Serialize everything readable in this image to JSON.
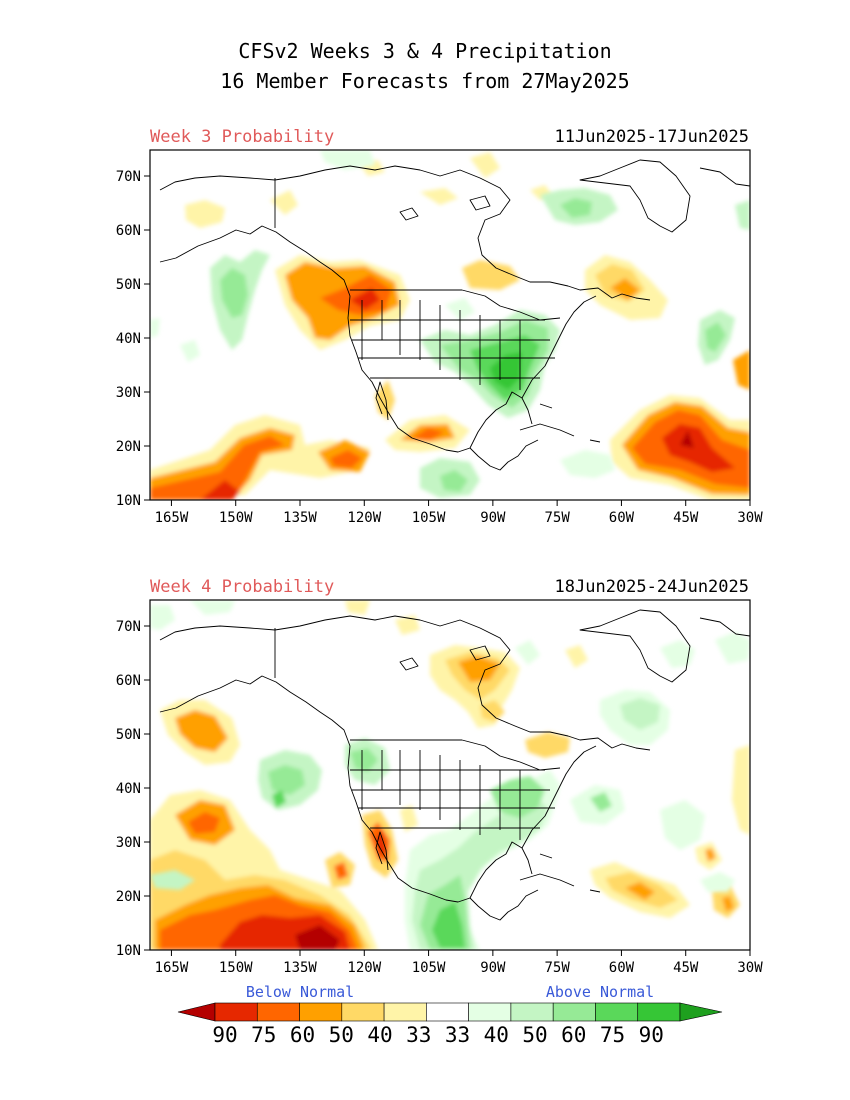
{
  "title": {
    "line1": "CFSv2 Weeks 3 & 4 Precipitation",
    "line2": "16 Member Forecasts from 27May2025"
  },
  "panels": [
    {
      "label": "Week 3 Probability",
      "dates": "11Jun2025-17Jun2025"
    },
    {
      "label": "Week 4 Probability",
      "dates": "18Jun2025-24Jun2025"
    }
  ],
  "axes": {
    "lat_ticks": [
      "70N",
      "60N",
      "50N",
      "40N",
      "30N",
      "20N",
      "10N"
    ],
    "lon_ticks": [
      "165W",
      "150W",
      "135W",
      "120W",
      "105W",
      "90W",
      "75W",
      "60W",
      "45W",
      "30W"
    ]
  },
  "legend": {
    "below_label": "Below Normal",
    "above_label": "Above Normal",
    "values": [
      "90",
      "75",
      "60",
      "50",
      "40",
      "33",
      "33",
      "40",
      "50",
      "60",
      "75",
      "90"
    ],
    "colors": [
      "#b40000",
      "#e62800",
      "#ff6600",
      "#ffa000",
      "#ffd966",
      "#fff4a8",
      "#ffffff",
      "#e4ffe4",
      "#c4f5c4",
      "#96ea96",
      "#5ad85a",
      "#36c636",
      "#1ea01e"
    ]
  },
  "colors": {
    "label_red": "#e05a5a",
    "label_blue": "#3a5ad8"
  }
}
